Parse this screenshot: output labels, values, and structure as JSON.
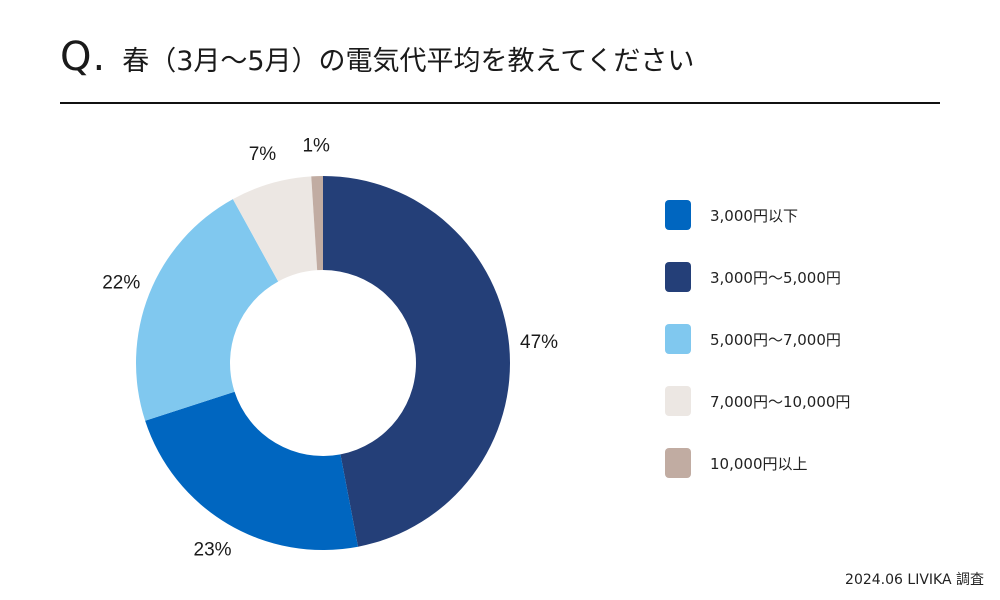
{
  "title": {
    "prefix": "Q.",
    "text": "春（3月〜5月）の電気代平均を教えてください"
  },
  "footnote": "2024.06 LIVIKA 調査",
  "chart_data": {
    "type": "pie",
    "title": "春（3月〜5月）の電気代平均を教えてください",
    "categories": [
      "3,000円以下",
      "3,000円〜5,000円",
      "5,000円〜7,000円",
      "7,000円〜10,000円",
      "10,000円以上"
    ],
    "values": [
      23,
      47,
      22,
      7,
      1
    ],
    "labels": [
      "23%",
      "47%",
      "22%",
      "7%",
      "1%"
    ],
    "colors": [
      "#0066c0",
      "#243f78",
      "#80c8ef",
      "#ece7e3",
      "#c1aca2"
    ],
    "donut": true,
    "start": "12 o'clock",
    "direction": "clockwise",
    "draw_order": [
      1,
      0,
      2,
      3,
      4
    ],
    "legend_position": "right"
  }
}
